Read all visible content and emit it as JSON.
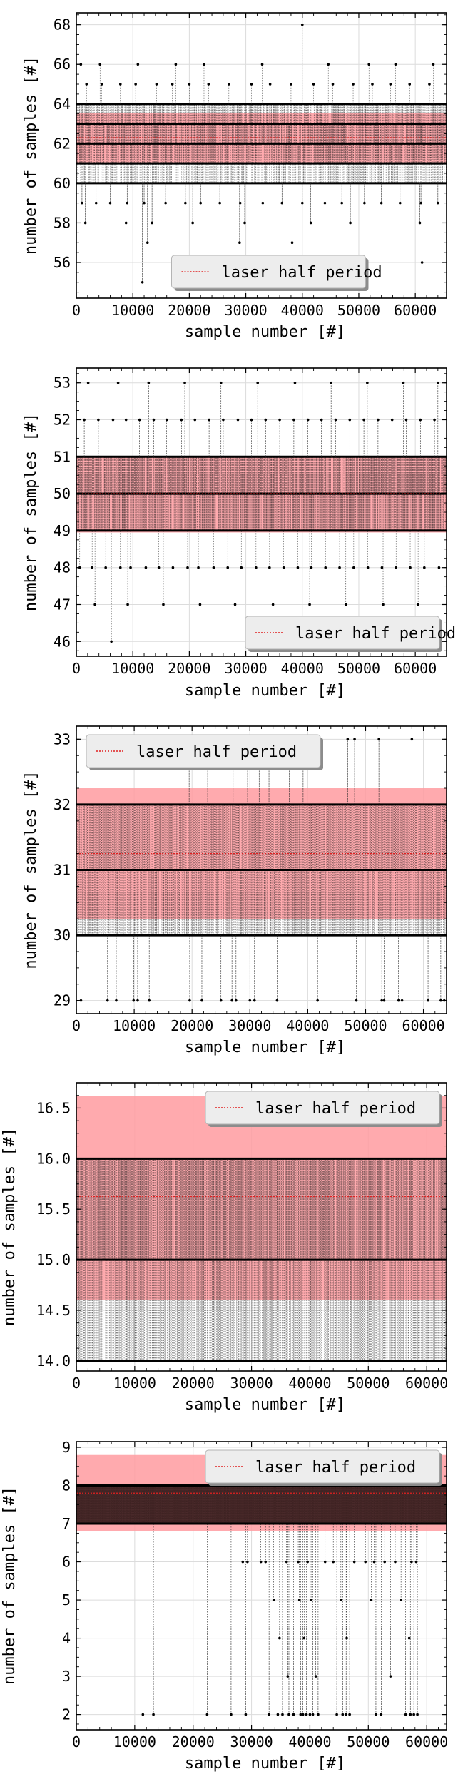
{
  "chart_data": [
    {
      "type": "scatter",
      "xlabel": "sample number [#]",
      "ylabel": "number of samples [#]",
      "xlim": [
        0,
        65536
      ],
      "ylim": [
        54.2,
        68.6
      ],
      "xticks": [
        "0",
        "10000",
        "20000",
        "30000",
        "40000",
        "50000",
        "60000"
      ],
      "yticks": [
        "56",
        "58",
        "60",
        "62",
        "64",
        "66",
        "68"
      ],
      "grid": true,
      "legend": {
        "label": "laser half period",
        "placement": "bottom-center"
      },
      "laser_half_period": 62.3,
      "band": [
        61.05,
        63.55
      ],
      "bulk_levels": [
        60,
        61,
        62,
        63,
        64
      ],
      "sparse_levels": [
        {
          "y": 59,
          "x": [
            1000,
            3500,
            6000,
            9000,
            12000,
            15800,
            19300,
            22000,
            25400,
            29000,
            33000,
            36400,
            40000,
            44000,
            47000,
            51000,
            54000,
            57300,
            61000,
            64000
          ]
        },
        {
          "y": 65,
          "x": [
            1800,
            4500,
            7800,
            10500,
            14200,
            17000,
            20000,
            23400,
            27000,
            31000,
            34300,
            38000,
            42000,
            45400,
            49000,
            52400,
            55600,
            59000,
            62500
          ]
        },
        {
          "y": 58,
          "x": [
            1600,
            8800,
            13400,
            20600,
            29800,
            41500,
            48500,
            60800
          ]
        },
        {
          "y": 66,
          "x": [
            800,
            4200,
            10900,
            17600,
            22600,
            32900,
            44600,
            51800,
            56500,
            63200
          ]
        },
        {
          "y": 57,
          "x": [
            12600,
            28900,
            38200
          ]
        },
        {
          "y": 56,
          "x": [
            61200
          ]
        },
        {
          "y": 55,
          "x": [
            11700
          ]
        },
        {
          "y": 68,
          "x": [
            40000
          ]
        }
      ]
    },
    {
      "type": "scatter",
      "xlabel": "sample number [#]",
      "ylabel": "number of samples [#]",
      "xlim": [
        0,
        65536
      ],
      "ylim": [
        45.6,
        53.4
      ],
      "xticks": [
        "0",
        "10000",
        "20000",
        "30000",
        "40000",
        "50000",
        "60000"
      ],
      "yticks": [
        "46",
        "47",
        "48",
        "49",
        "50",
        "51",
        "52",
        "53"
      ],
      "grid": true,
      "legend": {
        "label": "laser half period",
        "placement": "bottom-right"
      },
      "laser_half_period": 50.0,
      "band": [
        48.95,
        51.0
      ],
      "bulk_levels": [
        49,
        50,
        51
      ],
      "sparse_levels": [
        {
          "y": 48,
          "x": [
            600,
            2800,
            5200,
            7800,
            9600,
            12300,
            14600,
            17100,
            19700,
            21600,
            24300,
            26800,
            29200,
            31800,
            34200,
            36700,
            39200,
            41600,
            44100,
            46600,
            49100,
            51600,
            54100,
            56600,
            59100,
            61600,
            64200
          ]
        },
        {
          "y": 52,
          "x": [
            1400,
            3900,
            6500,
            8800,
            11200,
            13700,
            16000,
            18600,
            21000,
            23500,
            26000,
            28600,
            31000,
            33500,
            36000,
            38500,
            41000,
            43400,
            45900,
            48400,
            50900,
            53400,
            55900,
            58400,
            60900,
            63400
          ]
        },
        {
          "y": 47,
          "x": [
            3300,
            9100,
            15400,
            21900,
            28100,
            34800,
            41300,
            47700,
            54300,
            60500
          ]
        },
        {
          "y": 53,
          "x": [
            2100,
            7400,
            12800,
            19200,
            25600,
            32100,
            38700,
            45100,
            51500,
            57900,
            64000
          ]
        },
        {
          "y": 46,
          "x": [
            6200
          ]
        }
      ]
    },
    {
      "type": "scatter",
      "xlabel": "sample number [#]",
      "ylabel": "number of samples [#]",
      "xlim": [
        0,
        64000
      ],
      "ylim": [
        28.8,
        33.2
      ],
      "xticks": [
        "0",
        "10000",
        "20000",
        "30000",
        "40000",
        "50000",
        "60000"
      ],
      "yticks": [
        "29",
        "30",
        "31",
        "32",
        "33"
      ],
      "grid": true,
      "legend": {
        "label": "laser half period",
        "placement": "top-left"
      },
      "laser_half_period": 31.25,
      "band": [
        30.25,
        32.25
      ],
      "bulk_levels": [
        30,
        31,
        32
      ],
      "sparse_levels": [
        {
          "y": 29,
          "x": [
            800,
            5400,
            6900,
            9900,
            10600,
            12600,
            19600,
            21700,
            25000,
            26900,
            27600,
            30000,
            30800,
            34700,
            41700,
            48400,
            52800,
            53200,
            55700,
            56300,
            60800,
            63000,
            63600
          ]
        },
        {
          "y": 33,
          "x": [
            19500,
            22700,
            27100,
            29600,
            31600,
            33300,
            36800,
            39200,
            46900,
            48100,
            52300,
            58000
          ]
        }
      ]
    },
    {
      "type": "scatter",
      "xlabel": "sample number [#]",
      "ylabel": "number of samples [#]",
      "xlim": [
        0,
        63400
      ],
      "ylim": [
        13.9,
        16.75
      ],
      "xticks": [
        "0",
        "10000",
        "20000",
        "30000",
        "40000",
        "50000",
        "60000"
      ],
      "yticks": [
        "14.0",
        "14.5",
        "15.0",
        "15.5",
        "16.0",
        "16.5"
      ],
      "grid": true,
      "legend": {
        "label": "laser half period",
        "placement": "top-right"
      },
      "laser_half_period": 15.625,
      "band": [
        14.6,
        16.62
      ],
      "bulk_levels": [
        14,
        15,
        16
      ],
      "sparse_levels": []
    },
    {
      "type": "scatter",
      "xlabel": "sample number [#]",
      "ylabel": "number of samples [#]",
      "xlim": [
        0,
        63400
      ],
      "ylim": [
        1.6,
        9.15
      ],
      "xticks": [
        "0",
        "10000",
        "20000",
        "30000",
        "40000",
        "50000",
        "60000"
      ],
      "yticks": [
        "2",
        "3",
        "4",
        "5",
        "6",
        "7",
        "8",
        "9"
      ],
      "grid": true,
      "legend": {
        "label": "laser half period",
        "placement": "top-right"
      },
      "laser_half_period": 7.8,
      "band": [
        6.8,
        8.8
      ],
      "bulk_levels": [
        7,
        8
      ],
      "sparse_levels": [
        {
          "y": 2,
          "x": [
            11400,
            13200,
            22400,
            26500,
            29000,
            33000,
            34500,
            35300,
            36400,
            37200,
            38400,
            38800,
            39400,
            40000,
            40500,
            41400,
            44600,
            45600,
            46200,
            46800,
            51300,
            52200,
            56400,
            57200,
            57800,
            58400
          ]
        },
        {
          "y": 6,
          "x": [
            28500,
            29300,
            31600,
            32400,
            36000,
            38000,
            39600,
            42600,
            44000,
            47600,
            49500,
            51000,
            52800,
            54600,
            57400,
            58200
          ]
        },
        {
          "y": 5,
          "x": [
            33800,
            38200,
            40200,
            45300,
            50500,
            55600
          ]
        },
        {
          "y": 4,
          "x": [
            34800,
            39000,
            46300,
            57000
          ]
        },
        {
          "y": 3,
          "x": [
            36200,
            41000,
            53800
          ]
        }
      ]
    }
  ]
}
